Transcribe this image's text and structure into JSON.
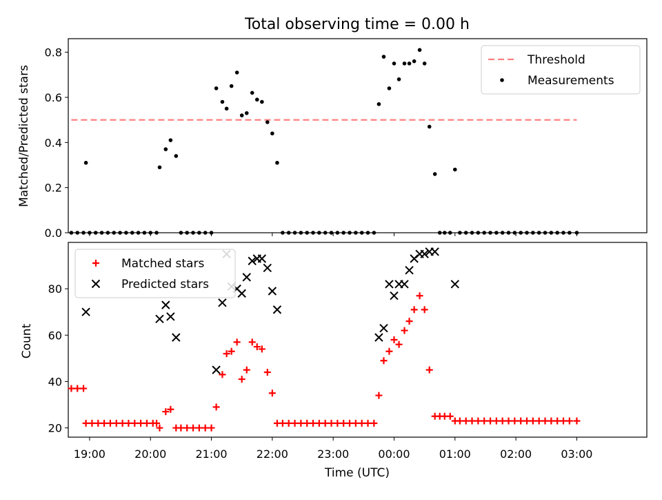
{
  "figure": {
    "title": "Total observing time = 0.00 h"
  },
  "chart_data": [
    {
      "type": "scatter",
      "xlabel": "",
      "ylabel": "Matched/Predicted stars",
      "xlim": [
        -0.35,
        9.15
      ],
      "ylim": [
        0,
        0.86
      ],
      "yticks": [
        0.0,
        0.2,
        0.4,
        0.6,
        0.8
      ],
      "ytick_labels": [
        "0.0",
        "0.2",
        "0.4",
        "0.6",
        "0.8"
      ],
      "legend_position": "top-right",
      "grid": false,
      "threshold": {
        "name": "Threshold",
        "y": 0.5,
        "x_range": [
          -0.3,
          8.0
        ],
        "color": "#ff7f7f",
        "style": "dashed"
      },
      "series": [
        {
          "name": "Measurements",
          "marker": "dot",
          "color": "#000000",
          "points": [
            [
              -0.3,
              0
            ],
            [
              -0.2,
              0
            ],
            [
              -0.1,
              0
            ],
            [
              -0.06,
              0.31
            ],
            [
              0.0,
              0
            ],
            [
              0.1,
              0
            ],
            [
              0.2,
              0
            ],
            [
              0.3,
              0
            ],
            [
              0.4,
              0
            ],
            [
              0.5,
              0
            ],
            [
              0.6,
              0
            ],
            [
              0.7,
              0
            ],
            [
              0.8,
              0
            ],
            [
              0.9,
              0
            ],
            [
              1.0,
              0
            ],
            [
              1.1,
              0
            ],
            [
              1.15,
              0.29
            ],
            [
              1.25,
              0.37
            ],
            [
              1.33,
              0.41
            ],
            [
              1.42,
              0.34
            ],
            [
              1.5,
              0
            ],
            [
              1.6,
              0
            ],
            [
              1.7,
              0
            ],
            [
              1.8,
              0
            ],
            [
              1.9,
              0
            ],
            [
              2.0,
              0
            ],
            [
              2.08,
              0.64
            ],
            [
              2.18,
              0.58
            ],
            [
              2.25,
              0.55
            ],
            [
              2.33,
              0.65
            ],
            [
              2.42,
              0.71
            ],
            [
              2.5,
              0.52
            ],
            [
              2.58,
              0.53
            ],
            [
              2.67,
              0.62
            ],
            [
              2.75,
              0.59
            ],
            [
              2.83,
              0.58
            ],
            [
              2.92,
              0.49
            ],
            [
              3.0,
              0.44
            ],
            [
              3.08,
              0.31
            ],
            [
              3.17,
              0
            ],
            [
              3.27,
              0
            ],
            [
              3.37,
              0
            ],
            [
              3.47,
              0
            ],
            [
              3.57,
              0
            ],
            [
              3.67,
              0
            ],
            [
              3.77,
              0
            ],
            [
              3.87,
              0
            ],
            [
              3.97,
              0
            ],
            [
              4.07,
              0
            ],
            [
              4.17,
              0
            ],
            [
              4.27,
              0
            ],
            [
              4.37,
              0
            ],
            [
              4.47,
              0
            ],
            [
              4.57,
              0
            ],
            [
              4.67,
              0
            ],
            [
              4.75,
              0.57
            ],
            [
              4.83,
              0.78
            ],
            [
              4.92,
              0.64
            ],
            [
              5.0,
              0.75
            ],
            [
              5.08,
              0.68
            ],
            [
              5.17,
              0.75
            ],
            [
              5.25,
              0.75
            ],
            [
              5.33,
              0.76
            ],
            [
              5.42,
              0.81
            ],
            [
              5.5,
              0.75
            ],
            [
              5.58,
              0.47
            ],
            [
              5.67,
              0.26
            ],
            [
              5.75,
              0
            ],
            [
              5.83,
              0
            ],
            [
              5.92,
              0
            ],
            [
              6.0,
              0.28
            ],
            [
              6.08,
              0
            ],
            [
              6.18,
              0
            ],
            [
              6.28,
              0
            ],
            [
              6.38,
              0
            ],
            [
              6.48,
              0
            ],
            [
              6.58,
              0
            ],
            [
              6.68,
              0
            ],
            [
              6.78,
              0
            ],
            [
              6.88,
              0
            ],
            [
              6.98,
              0
            ],
            [
              7.08,
              0
            ],
            [
              7.18,
              0
            ],
            [
              7.28,
              0
            ],
            [
              7.38,
              0
            ],
            [
              7.48,
              0
            ],
            [
              7.58,
              0
            ],
            [
              7.68,
              0
            ],
            [
              7.78,
              0
            ],
            [
              7.88,
              0
            ],
            [
              8.0,
              0
            ]
          ]
        }
      ]
    },
    {
      "type": "scatter",
      "xlabel": "Time (UTC)",
      "ylabel": "Count",
      "xlim": [
        -0.35,
        9.15
      ],
      "ylim": [
        16,
        100
      ],
      "yticks": [
        20,
        40,
        60,
        80
      ],
      "ytick_labels": [
        "20",
        "40",
        "60",
        "80"
      ],
      "xticks": [
        0,
        1,
        2,
        3,
        4,
        5,
        6,
        7,
        8
      ],
      "xtick_labels": [
        "19:00",
        "20:00",
        "21:00",
        "22:00",
        "23:00",
        "00:00",
        "01:00",
        "02:00",
        "03:00"
      ],
      "legend_position": "top-left",
      "grid": false,
      "series": [
        {
          "name": "Matched stars",
          "marker": "plus",
          "color": "#ff0000",
          "points": [
            [
              -0.3,
              37
            ],
            [
              -0.2,
              37
            ],
            [
              -0.1,
              37
            ],
            [
              -0.06,
              22
            ],
            [
              0.04,
              22
            ],
            [
              0.14,
              22
            ],
            [
              0.24,
              22
            ],
            [
              0.34,
              22
            ],
            [
              0.44,
              22
            ],
            [
              0.54,
              22
            ],
            [
              0.64,
              22
            ],
            [
              0.74,
              22
            ],
            [
              0.84,
              22
            ],
            [
              0.94,
              22
            ],
            [
              1.04,
              22
            ],
            [
              1.1,
              22
            ],
            [
              1.15,
              20
            ],
            [
              1.25,
              27
            ],
            [
              1.33,
              28
            ],
            [
              1.42,
              20
            ],
            [
              1.5,
              20
            ],
            [
              1.6,
              20
            ],
            [
              1.7,
              20
            ],
            [
              1.8,
              20
            ],
            [
              1.9,
              20
            ],
            [
              2.0,
              20
            ],
            [
              2.08,
              29
            ],
            [
              2.18,
              43
            ],
            [
              2.25,
              52
            ],
            [
              2.33,
              53
            ],
            [
              2.42,
              57
            ],
            [
              2.5,
              41
            ],
            [
              2.58,
              45
            ],
            [
              2.67,
              57
            ],
            [
              2.75,
              55
            ],
            [
              2.83,
              54
            ],
            [
              2.92,
              44
            ],
            [
              3.0,
              35
            ],
            [
              3.08,
              22
            ],
            [
              3.17,
              22
            ],
            [
              3.27,
              22
            ],
            [
              3.37,
              22
            ],
            [
              3.47,
              22
            ],
            [
              3.57,
              22
            ],
            [
              3.67,
              22
            ],
            [
              3.77,
              22
            ],
            [
              3.87,
              22
            ],
            [
              3.97,
              22
            ],
            [
              4.07,
              22
            ],
            [
              4.17,
              22
            ],
            [
              4.27,
              22
            ],
            [
              4.37,
              22
            ],
            [
              4.47,
              22
            ],
            [
              4.57,
              22
            ],
            [
              4.67,
              22
            ],
            [
              4.75,
              34
            ],
            [
              4.83,
              49
            ],
            [
              4.92,
              53
            ],
            [
              5.0,
              58
            ],
            [
              5.08,
              56
            ],
            [
              5.17,
              62
            ],
            [
              5.25,
              66
            ],
            [
              5.33,
              71
            ],
            [
              5.42,
              77
            ],
            [
              5.5,
              71
            ],
            [
              5.58,
              45
            ],
            [
              5.67,
              25
            ],
            [
              5.75,
              25
            ],
            [
              5.83,
              25
            ],
            [
              5.92,
              25
            ],
            [
              6.0,
              23
            ],
            [
              6.08,
              23
            ],
            [
              6.18,
              23
            ],
            [
              6.28,
              23
            ],
            [
              6.38,
              23
            ],
            [
              6.48,
              23
            ],
            [
              6.58,
              23
            ],
            [
              6.68,
              23
            ],
            [
              6.78,
              23
            ],
            [
              6.88,
              23
            ],
            [
              6.98,
              23
            ],
            [
              7.08,
              23
            ],
            [
              7.18,
              23
            ],
            [
              7.28,
              23
            ],
            [
              7.38,
              23
            ],
            [
              7.48,
              23
            ],
            [
              7.58,
              23
            ],
            [
              7.68,
              23
            ],
            [
              7.78,
              23
            ],
            [
              7.88,
              23
            ],
            [
              8.0,
              23
            ]
          ]
        },
        {
          "name": "Predicted stars",
          "marker": "x",
          "color": "#000000",
          "points": [
            [
              -0.06,
              70
            ],
            [
              1.15,
              67
            ],
            [
              1.25,
              73
            ],
            [
              1.33,
              68
            ],
            [
              1.42,
              59
            ],
            [
              2.08,
              45
            ],
            [
              2.18,
              74
            ],
            [
              2.25,
              95
            ],
            [
              2.33,
              81
            ],
            [
              2.42,
              80
            ],
            [
              2.5,
              78
            ],
            [
              2.58,
              85
            ],
            [
              2.67,
              92
            ],
            [
              2.75,
              93
            ],
            [
              2.83,
              93
            ],
            [
              2.92,
              89
            ],
            [
              3.0,
              79
            ],
            [
              3.08,
              71
            ],
            [
              4.75,
              59
            ],
            [
              4.83,
              63
            ],
            [
              4.92,
              82
            ],
            [
              5.0,
              77
            ],
            [
              5.08,
              82
            ],
            [
              5.17,
              82
            ],
            [
              5.25,
              88
            ],
            [
              5.33,
              93
            ],
            [
              5.42,
              95
            ],
            [
              5.5,
              95
            ],
            [
              5.58,
              96
            ],
            [
              5.67,
              96
            ],
            [
              6.0,
              82
            ]
          ]
        }
      ]
    }
  ]
}
